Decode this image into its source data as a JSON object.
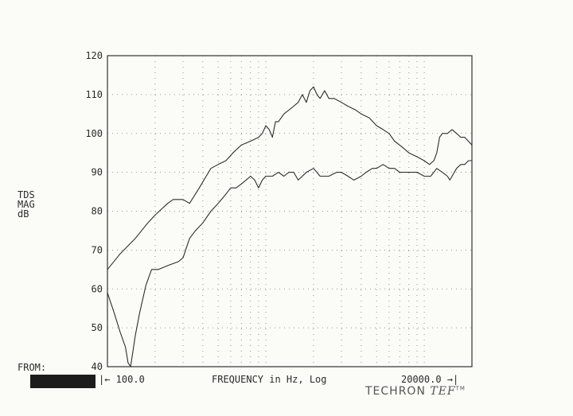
{
  "chart_data": {
    "type": "line",
    "ylabel": [
      "TDS",
      "MAG",
      "dB"
    ],
    "xlabel": "FREQUENCY in Hz, Log",
    "x_start_label": "|← 100.0",
    "x_end_label": "20000.0 →|",
    "xlim": [
      100,
      20000
    ],
    "x_scale": "log",
    "ylim": [
      40,
      120
    ],
    "yticks": [
      40,
      50,
      60,
      70,
      80,
      90,
      100,
      110,
      120
    ],
    "grid": true,
    "series": [
      {
        "points": [
          [
            100,
            65
          ],
          [
            120,
            69
          ],
          [
            150,
            73
          ],
          [
            180,
            77
          ],
          [
            200,
            79
          ],
          [
            240,
            82
          ],
          [
            260,
            83
          ],
          [
            300,
            83
          ],
          [
            330,
            82
          ],
          [
            380,
            86
          ],
          [
            420,
            89
          ],
          [
            450,
            91
          ],
          [
            500,
            92
          ],
          [
            560,
            93
          ],
          [
            620,
            95
          ],
          [
            700,
            97
          ],
          [
            800,
            98
          ],
          [
            900,
            99
          ],
          [
            950,
            100
          ],
          [
            1000,
            102
          ],
          [
            1050,
            101
          ],
          [
            1100,
            99
          ],
          [
            1150,
            103
          ],
          [
            1200,
            103
          ],
          [
            1300,
            105
          ],
          [
            1500,
            107
          ],
          [
            1600,
            108
          ],
          [
            1700,
            110
          ],
          [
            1800,
            108
          ],
          [
            1900,
            111
          ],
          [
            2000,
            112
          ],
          [
            2100,
            110
          ],
          [
            2200,
            109
          ],
          [
            2350,
            111
          ],
          [
            2500,
            109
          ],
          [
            2700,
            109
          ],
          [
            3000,
            108
          ],
          [
            3300,
            107
          ],
          [
            3700,
            106
          ],
          [
            4000,
            105
          ],
          [
            4500,
            104
          ],
          [
            5000,
            102
          ],
          [
            5500,
            101
          ],
          [
            6000,
            100
          ],
          [
            6500,
            98
          ],
          [
            7000,
            97
          ],
          [
            7500,
            96
          ],
          [
            8000,
            95
          ],
          [
            9000,
            94
          ],
          [
            10000,
            93
          ],
          [
            10800,
            92
          ],
          [
            11500,
            93
          ],
          [
            12000,
            95
          ],
          [
            12500,
            99
          ],
          [
            13000,
            100
          ],
          [
            14000,
            100
          ],
          [
            15000,
            101
          ],
          [
            16000,
            100
          ],
          [
            17000,
            99
          ],
          [
            18000,
            99
          ],
          [
            19000,
            98
          ],
          [
            20000,
            97
          ]
        ]
      },
      {
        "points": [
          [
            100,
            59
          ],
          [
            110,
            54
          ],
          [
            120,
            49
          ],
          [
            130,
            45
          ],
          [
            135,
            41
          ],
          [
            140,
            40
          ],
          [
            150,
            48
          ],
          [
            160,
            54
          ],
          [
            175,
            61
          ],
          [
            190,
            65
          ],
          [
            210,
            65
          ],
          [
            240,
            66
          ],
          [
            280,
            67
          ],
          [
            300,
            68
          ],
          [
            330,
            73
          ],
          [
            360,
            75
          ],
          [
            400,
            77
          ],
          [
            450,
            80
          ],
          [
            500,
            82
          ],
          [
            550,
            84
          ],
          [
            600,
            86
          ],
          [
            650,
            86
          ],
          [
            700,
            87
          ],
          [
            750,
            88
          ],
          [
            800,
            89
          ],
          [
            850,
            88
          ],
          [
            900,
            86
          ],
          [
            950,
            88
          ],
          [
            1000,
            89
          ],
          [
            1100,
            89
          ],
          [
            1200,
            90
          ],
          [
            1300,
            89
          ],
          [
            1400,
            90
          ],
          [
            1500,
            90
          ],
          [
            1600,
            88
          ],
          [
            1700,
            89
          ],
          [
            1800,
            90
          ],
          [
            2000,
            91
          ],
          [
            2200,
            89
          ],
          [
            2500,
            89
          ],
          [
            2800,
            90
          ],
          [
            3000,
            90
          ],
          [
            3300,
            89
          ],
          [
            3600,
            88
          ],
          [
            4000,
            89
          ],
          [
            4300,
            90
          ],
          [
            4700,
            91
          ],
          [
            5000,
            91
          ],
          [
            5500,
            92
          ],
          [
            6000,
            91
          ],
          [
            6500,
            91
          ],
          [
            7000,
            90
          ],
          [
            8000,
            90
          ],
          [
            9000,
            90
          ],
          [
            10000,
            89
          ],
          [
            11000,
            89
          ],
          [
            12000,
            91
          ],
          [
            13000,
            90
          ],
          [
            14000,
            89
          ],
          [
            14500,
            88
          ],
          [
            15000,
            89
          ],
          [
            16000,
            91
          ],
          [
            17000,
            92
          ],
          [
            18000,
            92
          ],
          [
            19000,
            93
          ],
          [
            20000,
            93
          ]
        ]
      }
    ]
  },
  "footer": {
    "from_label": "FROM:",
    "brand_techron": "TECHRON",
    "brand_tef": "TEF",
    "brand_tm": "TM"
  }
}
